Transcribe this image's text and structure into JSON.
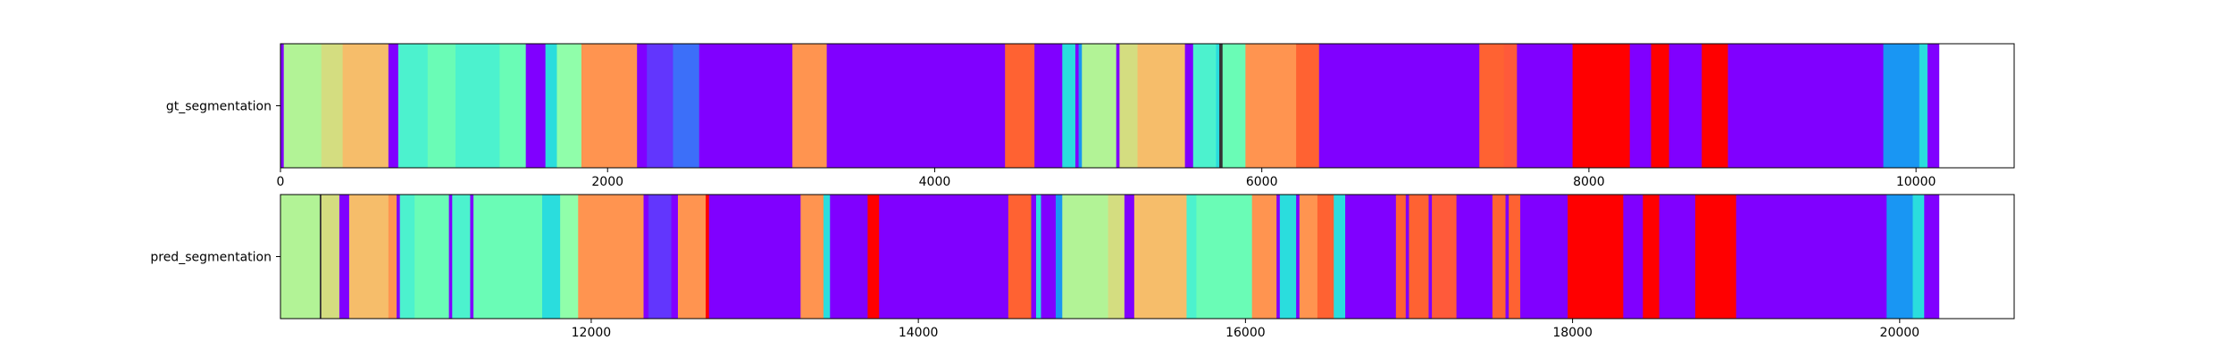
{
  "chart_data": [
    {
      "type": "segmentation",
      "ylabel": "gt_segmentation",
      "xlim": [
        0,
        10600
      ],
      "xticks": [
        0,
        2000,
        4000,
        6000,
        8000,
        10000
      ],
      "xticklabels": [
        "0",
        "2000",
        "4000",
        "6000",
        "8000",
        "10000"
      ],
      "segments": [
        {
          "start": 0,
          "end": 20,
          "color": "#8000ff"
        },
        {
          "start": 20,
          "end": 250,
          "color": "#b2f396"
        },
        {
          "start": 250,
          "end": 380,
          "color": "#d4dd80"
        },
        {
          "start": 380,
          "end": 660,
          "color": "#f6bd6a"
        },
        {
          "start": 660,
          "end": 720,
          "color": "#8000ff"
        },
        {
          "start": 720,
          "end": 900,
          "color": "#4cf2ce"
        },
        {
          "start": 900,
          "end": 1070,
          "color": "#6afcb6"
        },
        {
          "start": 1070,
          "end": 1340,
          "color": "#4cf2ce"
        },
        {
          "start": 1340,
          "end": 1500,
          "color": "#6afcb6"
        },
        {
          "start": 1500,
          "end": 1620,
          "color": "#8000ff"
        },
        {
          "start": 1620,
          "end": 1690,
          "color": "#2adddd"
        },
        {
          "start": 1690,
          "end": 1840,
          "color": "#90feaa"
        },
        {
          "start": 1840,
          "end": 2180,
          "color": "#ff9450"
        },
        {
          "start": 2180,
          "end": 2240,
          "color": "#8000ff"
        },
        {
          "start": 2240,
          "end": 2400,
          "color": "#6236fd"
        },
        {
          "start": 2400,
          "end": 2560,
          "color": "#3c6ff9"
        },
        {
          "start": 2560,
          "end": 3130,
          "color": "#8000ff"
        },
        {
          "start": 3130,
          "end": 3340,
          "color": "#ff9450"
        },
        {
          "start": 3340,
          "end": 4430,
          "color": "#8000ff"
        },
        {
          "start": 4430,
          "end": 4610,
          "color": "#ff6232"
        },
        {
          "start": 4610,
          "end": 4780,
          "color": "#8000ff"
        },
        {
          "start": 4780,
          "end": 4860,
          "color": "#2adddd"
        },
        {
          "start": 4860,
          "end": 4880,
          "color": "#8000ff"
        },
        {
          "start": 4880,
          "end": 4900,
          "color": "#1996f3"
        },
        {
          "start": 4900,
          "end": 5110,
          "color": "#b2f396"
        },
        {
          "start": 5110,
          "end": 5130,
          "color": "#8000ff"
        },
        {
          "start": 5130,
          "end": 5240,
          "color": "#d4dd80"
        },
        {
          "start": 5240,
          "end": 5530,
          "color": "#f6bd6a"
        },
        {
          "start": 5530,
          "end": 5580,
          "color": "#8000ff"
        },
        {
          "start": 5580,
          "end": 5720,
          "color": "#4cf2ce"
        },
        {
          "start": 5720,
          "end": 5740,
          "color": "#2adddd"
        },
        {
          "start": 5740,
          "end": 5760,
          "color": "#333333"
        },
        {
          "start": 5760,
          "end": 5900,
          "color": "#6afcb6"
        },
        {
          "start": 5900,
          "end": 6210,
          "color": "#ff9450"
        },
        {
          "start": 6210,
          "end": 6350,
          "color": "#ff6232"
        },
        {
          "start": 6350,
          "end": 7330,
          "color": "#8000ff"
        },
        {
          "start": 7330,
          "end": 7480,
          "color": "#ff6232"
        },
        {
          "start": 7480,
          "end": 7560,
          "color": "#ff5a3a"
        },
        {
          "start": 7560,
          "end": 7900,
          "color": "#8000ff"
        },
        {
          "start": 7900,
          "end": 8250,
          "color": "#ff0000"
        },
        {
          "start": 8250,
          "end": 8380,
          "color": "#8000ff"
        },
        {
          "start": 8380,
          "end": 8490,
          "color": "#ff0000"
        },
        {
          "start": 8490,
          "end": 8690,
          "color": "#8000ff"
        },
        {
          "start": 8690,
          "end": 8850,
          "color": "#ff0000"
        },
        {
          "start": 8850,
          "end": 9800,
          "color": "#8000ff"
        },
        {
          "start": 9800,
          "end": 10020,
          "color": "#1996f3"
        },
        {
          "start": 10020,
          "end": 10070,
          "color": "#2adddd"
        },
        {
          "start": 10070,
          "end": 10140,
          "color": "#8000ff"
        }
      ]
    },
    {
      "type": "segmentation",
      "ylabel": "pred_segmentation",
      "xlim": [
        10100,
        20700
      ],
      "xticks": [
        12000,
        14000,
        16000,
        18000,
        20000
      ],
      "xticklabels": [
        "12000",
        "14000",
        "16000",
        "18000",
        "20000"
      ],
      "segments": [
        {
          "start": 10100,
          "end": 10340,
          "color": "#b2f396"
        },
        {
          "start": 10340,
          "end": 10350,
          "color": "#333333"
        },
        {
          "start": 10350,
          "end": 10460,
          "color": "#d4dd80"
        },
        {
          "start": 10460,
          "end": 10520,
          "color": "#8000ff"
        },
        {
          "start": 10520,
          "end": 10760,
          "color": "#f6bd6a"
        },
        {
          "start": 10760,
          "end": 10810,
          "color": "#ff9450"
        },
        {
          "start": 10810,
          "end": 10830,
          "color": "#8000ff"
        },
        {
          "start": 10830,
          "end": 10920,
          "color": "#4cf2ce"
        },
        {
          "start": 10920,
          "end": 11130,
          "color": "#6afcb6"
        },
        {
          "start": 11130,
          "end": 11150,
          "color": "#8000ff"
        },
        {
          "start": 11150,
          "end": 11260,
          "color": "#4cf2ce"
        },
        {
          "start": 11260,
          "end": 11280,
          "color": "#8000ff"
        },
        {
          "start": 11280,
          "end": 11700,
          "color": "#6afcb6"
        },
        {
          "start": 11700,
          "end": 11810,
          "color": "#2adddd"
        },
        {
          "start": 11810,
          "end": 11920,
          "color": "#90feaa"
        },
        {
          "start": 11920,
          "end": 12320,
          "color": "#ff9450"
        },
        {
          "start": 12320,
          "end": 12350,
          "color": "#8000ff"
        },
        {
          "start": 12350,
          "end": 12490,
          "color": "#6236fd"
        },
        {
          "start": 12490,
          "end": 12530,
          "color": "#8000ff"
        },
        {
          "start": 12530,
          "end": 12700,
          "color": "#ff9450"
        },
        {
          "start": 12700,
          "end": 12720,
          "color": "#ff0000"
        },
        {
          "start": 12720,
          "end": 13280,
          "color": "#8000ff"
        },
        {
          "start": 13280,
          "end": 13420,
          "color": "#ff9450"
        },
        {
          "start": 13420,
          "end": 13460,
          "color": "#2adddd"
        },
        {
          "start": 13460,
          "end": 13690,
          "color": "#8000ff"
        },
        {
          "start": 13690,
          "end": 13760,
          "color": "#ff0000"
        },
        {
          "start": 13760,
          "end": 14550,
          "color": "#8000ff"
        },
        {
          "start": 14550,
          "end": 14690,
          "color": "#ff6232"
        },
        {
          "start": 14690,
          "end": 14720,
          "color": "#8000ff"
        },
        {
          "start": 14720,
          "end": 14750,
          "color": "#2adddd"
        },
        {
          "start": 14750,
          "end": 14840,
          "color": "#8000ff"
        },
        {
          "start": 14840,
          "end": 14880,
          "color": "#1996f3"
        },
        {
          "start": 14880,
          "end": 15160,
          "color": "#b2f396"
        },
        {
          "start": 15160,
          "end": 15260,
          "color": "#d4dd80"
        },
        {
          "start": 15260,
          "end": 15320,
          "color": "#8000ff"
        },
        {
          "start": 15320,
          "end": 15640,
          "color": "#f6bd6a"
        },
        {
          "start": 15640,
          "end": 15700,
          "color": "#4cf2ce"
        },
        {
          "start": 15700,
          "end": 16040,
          "color": "#6afcb6"
        },
        {
          "start": 16040,
          "end": 16190,
          "color": "#ff9450"
        },
        {
          "start": 16190,
          "end": 16210,
          "color": "#8000ff"
        },
        {
          "start": 16210,
          "end": 16310,
          "color": "#2adddd"
        },
        {
          "start": 16310,
          "end": 16330,
          "color": "#8000ff"
        },
        {
          "start": 16330,
          "end": 16440,
          "color": "#ff9450"
        },
        {
          "start": 16440,
          "end": 16540,
          "color": "#ff6232"
        },
        {
          "start": 16540,
          "end": 16610,
          "color": "#2adddd"
        },
        {
          "start": 16610,
          "end": 16920,
          "color": "#8000ff"
        },
        {
          "start": 16920,
          "end": 16980,
          "color": "#ff6232"
        },
        {
          "start": 16980,
          "end": 17000,
          "color": "#8000ff"
        },
        {
          "start": 17000,
          "end": 17120,
          "color": "#ff6232"
        },
        {
          "start": 17120,
          "end": 17140,
          "color": "#8000ff"
        },
        {
          "start": 17140,
          "end": 17290,
          "color": "#ff5a3a"
        },
        {
          "start": 17290,
          "end": 17510,
          "color": "#8000ff"
        },
        {
          "start": 17510,
          "end": 17590,
          "color": "#ff6232"
        },
        {
          "start": 17590,
          "end": 17610,
          "color": "#8000ff"
        },
        {
          "start": 17610,
          "end": 17680,
          "color": "#ff6232"
        },
        {
          "start": 17680,
          "end": 17970,
          "color": "#8000ff"
        },
        {
          "start": 17970,
          "end": 18310,
          "color": "#ff0000"
        },
        {
          "start": 18310,
          "end": 18430,
          "color": "#8000ff"
        },
        {
          "start": 18430,
          "end": 18530,
          "color": "#ff0000"
        },
        {
          "start": 18530,
          "end": 18750,
          "color": "#8000ff"
        },
        {
          "start": 18750,
          "end": 19000,
          "color": "#ff0000"
        },
        {
          "start": 19000,
          "end": 19920,
          "color": "#8000ff"
        },
        {
          "start": 19920,
          "end": 20080,
          "color": "#1996f3"
        },
        {
          "start": 20080,
          "end": 20150,
          "color": "#2adddd"
        },
        {
          "start": 20150,
          "end": 20240,
          "color": "#8000ff"
        }
      ]
    }
  ]
}
